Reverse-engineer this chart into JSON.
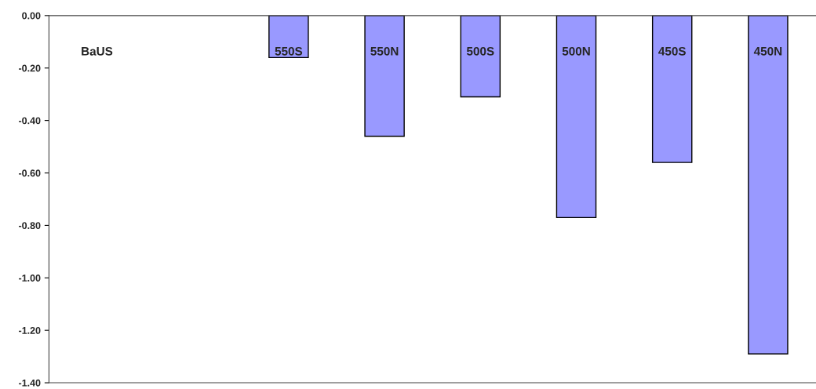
{
  "chart_data": {
    "type": "bar",
    "categories": [
      "BaUS",
      null,
      "550S",
      "550N",
      "500S",
      "500N",
      "450S",
      "450N"
    ],
    "values": [
      null,
      null,
      -0.16,
      -0.46,
      -0.31,
      -0.77,
      -0.56,
      -1.29
    ],
    "color": "#9999ff",
    "ylim": [
      -1.4,
      0
    ],
    "yticks": [
      {
        "value": 0,
        "label": "0.00"
      },
      {
        "value": -0.2,
        "label": "-0.20"
      },
      {
        "value": -0.4,
        "label": "-0.40"
      },
      {
        "value": -0.6,
        "label": "-0.60"
      },
      {
        "value": -0.8,
        "label": "-0.80"
      },
      {
        "value": -1.0,
        "label": "-1.00"
      },
      {
        "value": -1.2,
        "label": "-1.20"
      },
      {
        "value": -1.4,
        "label": "-1.40"
      }
    ],
    "tick_labels": "y",
    "grid": false,
    "legend": false
  }
}
